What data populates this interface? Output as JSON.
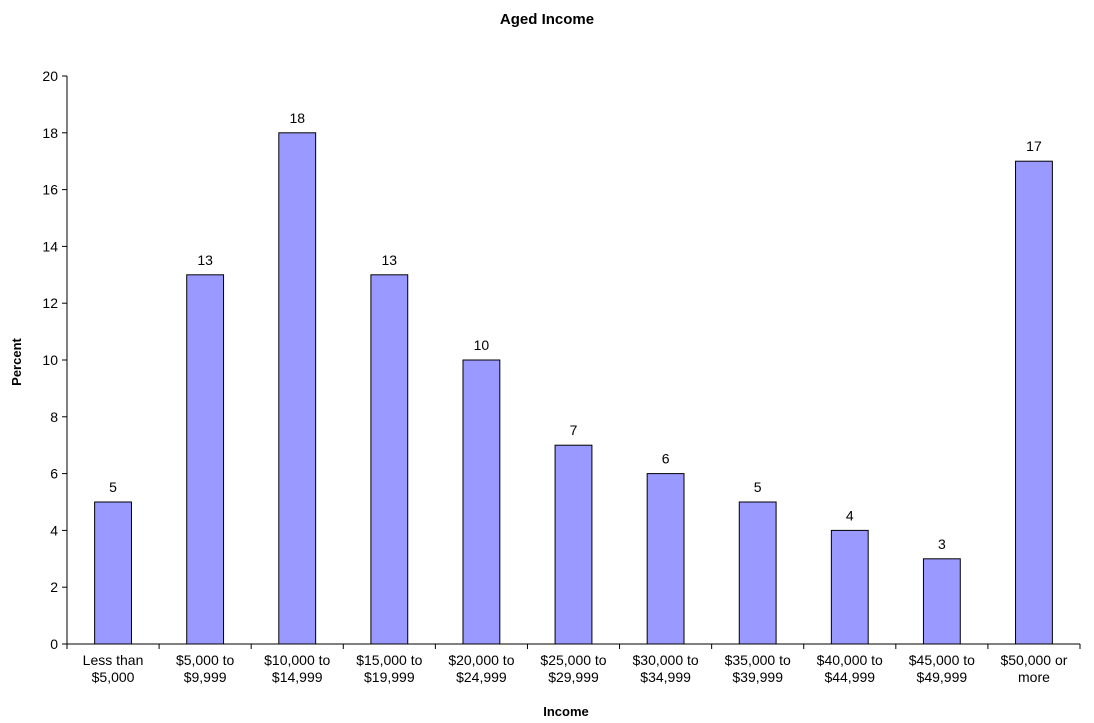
{
  "chart_data": {
    "type": "bar",
    "title": "Aged Income",
    "xlabel": "Income",
    "ylabel": "Percent",
    "ylim": [
      0,
      20
    ],
    "ytick_step": 2,
    "grid": false,
    "legend": "none",
    "bar_color": "#9999ff",
    "categories": [
      [
        "Less than",
        "$5,000"
      ],
      [
        "$5,000 to",
        "$9,999"
      ],
      [
        "$10,000 to",
        "$14,999"
      ],
      [
        "$15,000 to",
        "$19,999"
      ],
      [
        "$20,000 to",
        "$24,999"
      ],
      [
        "$25,000 to",
        "$29,999"
      ],
      [
        "$30,000 to",
        "$34,999"
      ],
      [
        "$35,000 to",
        "$39,999"
      ],
      [
        "$40,000 to",
        "$44,999"
      ],
      [
        "$45,000 to",
        "$49,999"
      ],
      [
        "$50,000 or",
        "more"
      ]
    ],
    "values": [
      5,
      13,
      18,
      13,
      10,
      7,
      6,
      5,
      4,
      3,
      17
    ]
  }
}
